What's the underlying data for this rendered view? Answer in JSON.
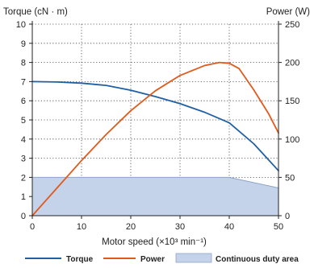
{
  "chart_data": {
    "type": "line",
    "title": "",
    "xlabel": "Motor speed (×10³ min⁻¹)",
    "ylabel_left": "Torque (cN · m)",
    "ylabel_right": "Power (W)",
    "xlim": [
      0,
      50
    ],
    "ylim_left": [
      0,
      10
    ],
    "ylim_right": [
      0,
      250
    ],
    "x_ticks": [
      "0",
      "10",
      "20",
      "30",
      "40",
      "50"
    ],
    "y_left_ticks": [
      "0",
      "1",
      "2",
      "3",
      "4",
      "5",
      "6",
      "7",
      "8",
      "9",
      "10"
    ],
    "y_right_ticks": [
      "0",
      "50",
      "100",
      "150",
      "200",
      "250"
    ],
    "grid": true,
    "legend_position": "bottom",
    "series": [
      {
        "name": "Torque",
        "axis": "left",
        "color": "#1f5fa3",
        "points": [
          [
            0,
            7.0
          ],
          [
            5,
            6.98
          ],
          [
            10,
            6.92
          ],
          [
            15,
            6.8
          ],
          [
            20,
            6.55
          ],
          [
            25,
            6.22
          ],
          [
            30,
            5.85
          ],
          [
            35,
            5.4
          ],
          [
            40,
            4.85
          ],
          [
            45,
            3.75
          ],
          [
            50,
            2.35
          ]
        ]
      },
      {
        "name": "Power",
        "axis": "right",
        "color": "#e05a1c",
        "points": [
          [
            0,
            0
          ],
          [
            5,
            36
          ],
          [
            10,
            72
          ],
          [
            15,
            106
          ],
          [
            20,
            137
          ],
          [
            25,
            163
          ],
          [
            30,
            183
          ],
          [
            35,
            196
          ],
          [
            38,
            200
          ],
          [
            40,
            199
          ],
          [
            42,
            192
          ],
          [
            45,
            164
          ],
          [
            48,
            133
          ],
          [
            50,
            108
          ]
        ]
      }
    ],
    "continuous_duty_area": {
      "name": "Continuous duty area",
      "axis": "left",
      "fill_color": "#c5d3ea",
      "edge_color": "#8da4c8",
      "points": [
        [
          0,
          2.0
        ],
        [
          40,
          2.0
        ],
        [
          50,
          1.45
        ]
      ]
    }
  }
}
